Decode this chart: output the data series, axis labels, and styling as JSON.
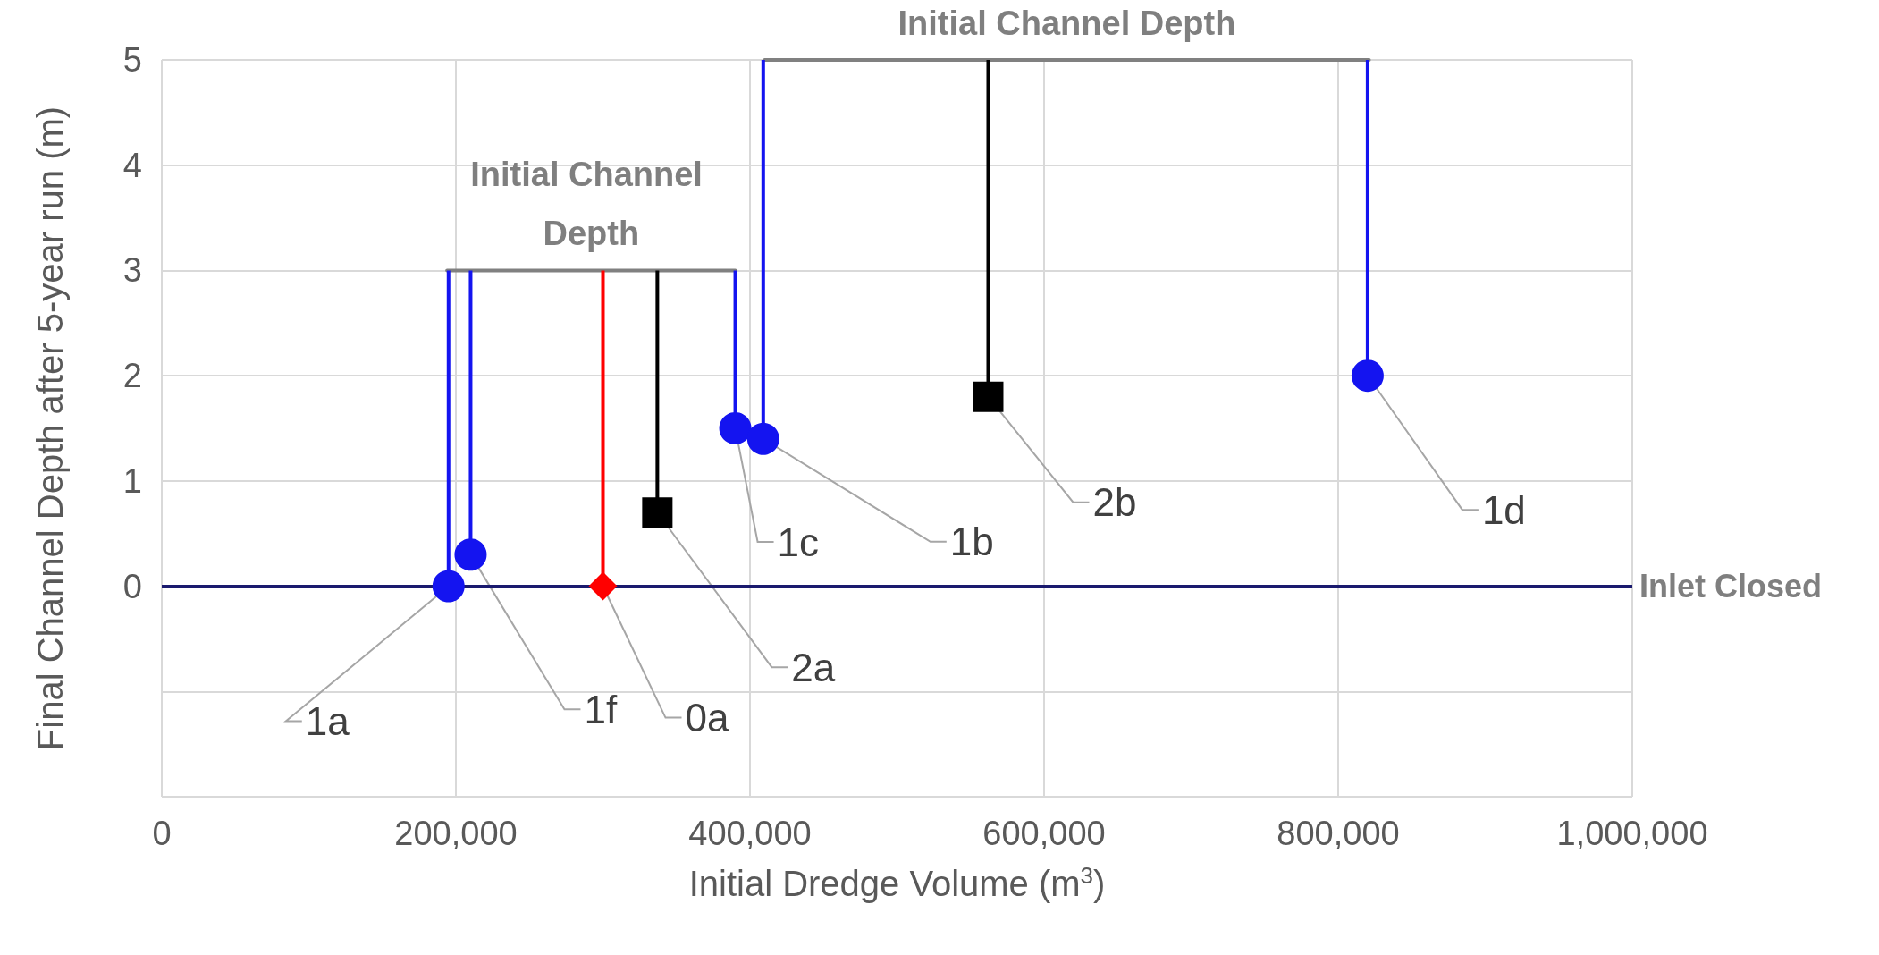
{
  "chart_data": {
    "type": "scatter",
    "xlabel": "Initial Dredge Volume (m$^{3}$)",
    "ylabel": "Final Channel Depth after 5-year run (m)",
    "xlim": [
      0,
      1000000
    ],
    "xticks": [
      0,
      {
        "value": 200000,
        "label": "200,000"
      },
      {
        "value": 400000,
        "label": "400,000"
      },
      {
        "value": 600000,
        "label": "600,000"
      },
      {
        "value": 800000,
        "label": "800,000"
      },
      {
        "value": 1000000,
        "label": "1,000,000"
      }
    ],
    "ylim": [
      -2,
      5
    ],
    "yticks": [
      {
        "value": -2,
        "label": null
      },
      {
        "value": -1,
        "label": null
      },
      0,
      1,
      2,
      3,
      4,
      5
    ],
    "grid": true,
    "series": [
      {
        "type": "line",
        "marker": "none",
        "color": "#808080",
        "x": [
          194000,
          390000
        ],
        "values": [
          3,
          3
        ]
      },
      {
        "type": "line",
        "marker": "none",
        "color": "#808080",
        "x": [
          410000,
          821000
        ],
        "values": [
          5,
          5
        ]
      },
      {
        "marker": "circle",
        "color": "#1414f0",
        "x": [
          195000,
          210000,
          390000,
          409000,
          820000
        ],
        "values": [
          0,
          0.3,
          1.5,
          1.4,
          2.0
        ],
        "errors": [
          [
            0,
            3
          ],
          [
            0.3,
            3
          ],
          [
            1.5,
            3
          ],
          [
            1.4,
            5
          ],
          [
            2.0,
            5
          ]
        ]
      },
      {
        "marker": "diamond",
        "color": "#ff0000",
        "x": [
          300000
        ],
        "values": [
          0
        ],
        "errors": [
          [
            0,
            3
          ]
        ]
      },
      {
        "marker": "square",
        "color": "#000000",
        "x": [
          337000,
          562000
        ],
        "values": [
          0.7,
          1.8
        ],
        "errors": [
          [
            0.7,
            3
          ],
          [
            1.8,
            5
          ]
        ]
      }
    ],
    "ref_lines": [
      {
        "axis": "y",
        "value": 0,
        "label": "Inlet Closed",
        "color": "#1a1a6e"
      }
    ],
    "annotations": [
      {
        "text": "Initial Channel Depth",
        "x": 292000,
        "y": 3
      },
      {
        "text": "Initial Channel Depth",
        "x": 615500,
        "y": 5
      },
      {
        "text": "1a",
        "x": 195000,
        "y": 0
      },
      {
        "text": "1f",
        "x": 210000,
        "y": 0.3
      },
      {
        "text": "0a",
        "x": 300000,
        "y": 0
      },
      {
        "text": "2a",
        "x": 337000,
        "y": 0.7
      },
      {
        "text": "1c",
        "x": 390000,
        "y": 1.5
      },
      {
        "text": "1b",
        "x": 409000,
        "y": 1.4
      },
      {
        "text": "2b",
        "x": 562000,
        "y": 1.8
      },
      {
        "text": "1d",
        "x": 820000,
        "y": 2.0
      }
    ]
  }
}
